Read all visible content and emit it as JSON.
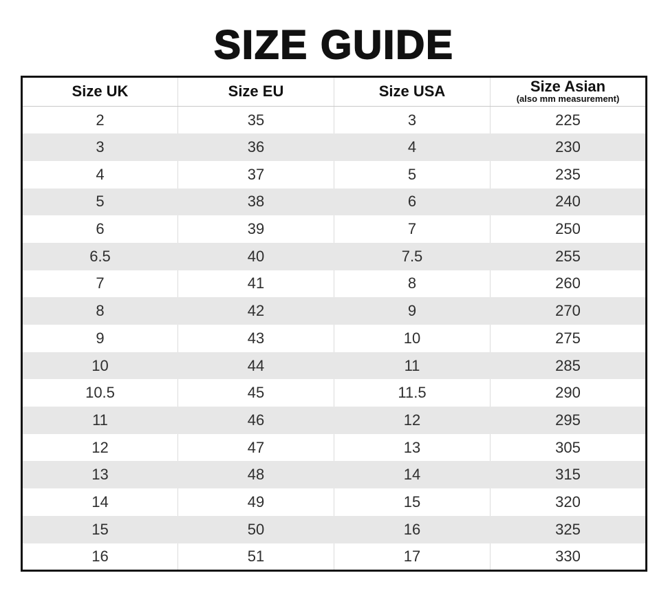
{
  "title": "SIZE GUIDE",
  "colors": {
    "background": "#ffffff",
    "title_text": "#111111",
    "outer_border": "#111111",
    "header_divider": "#c9c9c9",
    "column_divider": "#dcdcdc",
    "row_stripe": "#e7e7e7",
    "cell_text": "#2e2e2e"
  },
  "table": {
    "columns": [
      {
        "label": "Size UK",
        "sublabel": ""
      },
      {
        "label": "Size EU",
        "sublabel": ""
      },
      {
        "label": "Size USA",
        "sublabel": ""
      },
      {
        "label": "Size Asian",
        "sublabel": "(also mm measurement)"
      }
    ],
    "rows": [
      [
        "2",
        "35",
        "3",
        "225"
      ],
      [
        "3",
        "36",
        "4",
        "230"
      ],
      [
        "4",
        "37",
        "5",
        "235"
      ],
      [
        "5",
        "38",
        "6",
        "240"
      ],
      [
        "6",
        "39",
        "7",
        "250"
      ],
      [
        "6.5",
        "40",
        "7.5",
        "255"
      ],
      [
        "7",
        "41",
        "8",
        "260"
      ],
      [
        "8",
        "42",
        "9",
        "270"
      ],
      [
        "9",
        "43",
        "10",
        "275"
      ],
      [
        "10",
        "44",
        "11",
        "285"
      ],
      [
        "10.5",
        "45",
        "11.5",
        "290"
      ],
      [
        "11",
        "46",
        "12",
        "295"
      ],
      [
        "12",
        "47",
        "13",
        "305"
      ],
      [
        "13",
        "48",
        "14",
        "315"
      ],
      [
        "14",
        "49",
        "15",
        "320"
      ],
      [
        "15",
        "50",
        "16",
        "325"
      ],
      [
        "16",
        "51",
        "17",
        "330"
      ]
    ]
  },
  "chart_data": {
    "type": "table",
    "title": "SIZE GUIDE",
    "columns": [
      "Size UK",
      "Size EU",
      "Size USA",
      "Size Asian (also mm measurement)"
    ],
    "rows": [
      [
        2,
        35,
        3,
        225
      ],
      [
        3,
        36,
        4,
        230
      ],
      [
        4,
        37,
        5,
        235
      ],
      [
        5,
        38,
        6,
        240
      ],
      [
        6,
        39,
        7,
        250
      ],
      [
        6.5,
        40,
        7.5,
        255
      ],
      [
        7,
        41,
        8,
        260
      ],
      [
        8,
        42,
        9,
        270
      ],
      [
        9,
        43,
        10,
        275
      ],
      [
        10,
        44,
        11,
        285
      ],
      [
        10.5,
        45,
        11.5,
        290
      ],
      [
        11,
        46,
        12,
        295
      ],
      [
        12,
        47,
        13,
        305
      ],
      [
        13,
        48,
        14,
        315
      ],
      [
        14,
        49,
        15,
        320
      ],
      [
        15,
        50,
        16,
        325
      ],
      [
        16,
        51,
        17,
        330
      ]
    ],
    "layout_hints": {
      "striped_rows": "even rows shaded light gray",
      "outer_border": "thick black",
      "alignment": "center"
    }
  }
}
